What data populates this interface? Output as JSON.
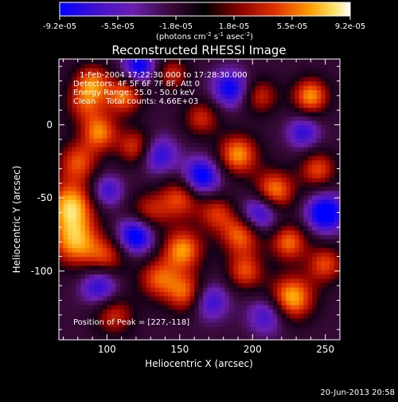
{
  "chart_data": {
    "type": "heatmap",
    "title": "Reconstructed RHESSI Image",
    "xlabel": "Heliocentric X (arcsec)",
    "ylabel": "Heliocentric Y (arcsec)",
    "xlim": [
      67,
      260
    ],
    "ylim": [
      -147,
      45
    ],
    "x_ticks": [
      100,
      150,
      200,
      250
    ],
    "y_ticks": [
      0,
      -50,
      -100
    ],
    "colorbar": {
      "tick_labels": [
        "-9.2e-05",
        "-5.5e-05",
        "-1.8e-05",
        "1.8e-05",
        "5.5e-05",
        "9.2e-05"
      ],
      "range": [
        -9.2e-05,
        9.2e-05
      ],
      "unit_text": "(photons cm",
      "unit_exp1": "-2",
      "unit_mid": " s",
      "unit_exp2": "-1",
      "unit_mid2": " asec",
      "unit_exp3": "-2",
      "unit_end": ")",
      "colormap": [
        "#0000ff",
        "#6a1fb0",
        "#3a0a3a",
        "#000000",
        "#8a0000",
        "#e03000",
        "#ff9a00",
        "#ffe060",
        "#ffffff"
      ]
    },
    "annotations": [
      "1-Feb-2004 17:22:30.000 to 17:28:30.000",
      "Detectors: 4F 5F 6F 7F 8F, Att 0",
      "Energy Range: 25.0 - 50.0 keV",
      "Clean    Total counts: 4.66E+03"
    ],
    "peak_label": "Position of Peak = [227,-118]",
    "peak_position": [
      227,
      -118
    ],
    "timestamp": "20-Jun-2013 20:58",
    "sources": [
      {
        "x": 75,
        "y": -55,
        "amp": 1.0,
        "r": 12
      },
      {
        "x": 78,
        "y": -80,
        "amp": 0.9,
        "r": 12
      },
      {
        "x": 80,
        "y": -25,
        "amp": 0.7,
        "r": 10
      },
      {
        "x": 85,
        "y": 15,
        "amp": 0.6,
        "r": 10
      },
      {
        "x": 90,
        "y": 30,
        "amp": 0.7,
        "r": 9
      },
      {
        "x": 95,
        "y": -5,
        "amp": 0.8,
        "r": 9
      },
      {
        "x": 100,
        "y": -90,
        "amp": 0.6,
        "r": 10
      },
      {
        "x": 105,
        "y": -130,
        "amp": 0.6,
        "r": 10
      },
      {
        "x": 112,
        "y": 20,
        "amp": 0.8,
        "r": 9
      },
      {
        "x": 120,
        "y": -15,
        "amp": 0.7,
        "r": 9
      },
      {
        "x": 128,
        "y": -60,
        "amp": 0.6,
        "r": 10
      },
      {
        "x": 135,
        "y": -105,
        "amp": 0.7,
        "r": 10
      },
      {
        "x": 145,
        "y": 35,
        "amp": 0.6,
        "r": 8
      },
      {
        "x": 150,
        "y": -50,
        "amp": 0.7,
        "r": 10
      },
      {
        "x": 152,
        "y": -85,
        "amp": 0.9,
        "r": 10
      },
      {
        "x": 155,
        "y": -115,
        "amp": 0.8,
        "r": 10
      },
      {
        "x": 165,
        "y": 5,
        "amp": 0.6,
        "r": 9
      },
      {
        "x": 175,
        "y": -60,
        "amp": 0.6,
        "r": 9
      },
      {
        "x": 190,
        "y": -20,
        "amp": 0.9,
        "r": 10
      },
      {
        "x": 192,
        "y": -75,
        "amp": 0.8,
        "r": 10
      },
      {
        "x": 195,
        "y": -100,
        "amp": 0.7,
        "r": 9
      },
      {
        "x": 205,
        "y": 20,
        "amp": 0.6,
        "r": 9
      },
      {
        "x": 215,
        "y": -45,
        "amp": 0.9,
        "r": 10
      },
      {
        "x": 225,
        "y": -80,
        "amp": 0.8,
        "r": 9
      },
      {
        "x": 227,
        "y": -118,
        "amp": 1.0,
        "r": 11
      },
      {
        "x": 240,
        "y": 20,
        "amp": 0.9,
        "r": 9
      },
      {
        "x": 245,
        "y": -30,
        "amp": 0.7,
        "r": 9
      },
      {
        "x": 250,
        "y": -95,
        "amp": 0.7,
        "r": 9
      },
      {
        "x": 120,
        "y": -75,
        "amp": -1.0,
        "r": 9
      },
      {
        "x": 122,
        "y": 40,
        "amp": -0.8,
        "r": 8
      },
      {
        "x": 135,
        "y": -20,
        "amp": -0.7,
        "r": 9
      },
      {
        "x": 165,
        "y": -35,
        "amp": -0.9,
        "r": 9
      },
      {
        "x": 170,
        "y": -120,
        "amp": -0.7,
        "r": 9
      },
      {
        "x": 185,
        "y": 25,
        "amp": -0.8,
        "r": 9
      },
      {
        "x": 205,
        "y": -60,
        "amp": -0.8,
        "r": 9
      },
      {
        "x": 210,
        "y": -130,
        "amp": -0.6,
        "r": 9
      },
      {
        "x": 235,
        "y": -5,
        "amp": -0.6,
        "r": 8
      },
      {
        "x": 250,
        "y": -60,
        "amp": -1.0,
        "r": 9
      },
      {
        "x": 95,
        "y": -110,
        "amp": -0.7,
        "r": 9
      },
      {
        "x": 100,
        "y": -45,
        "amp": -0.6,
        "r": 8
      }
    ]
  }
}
